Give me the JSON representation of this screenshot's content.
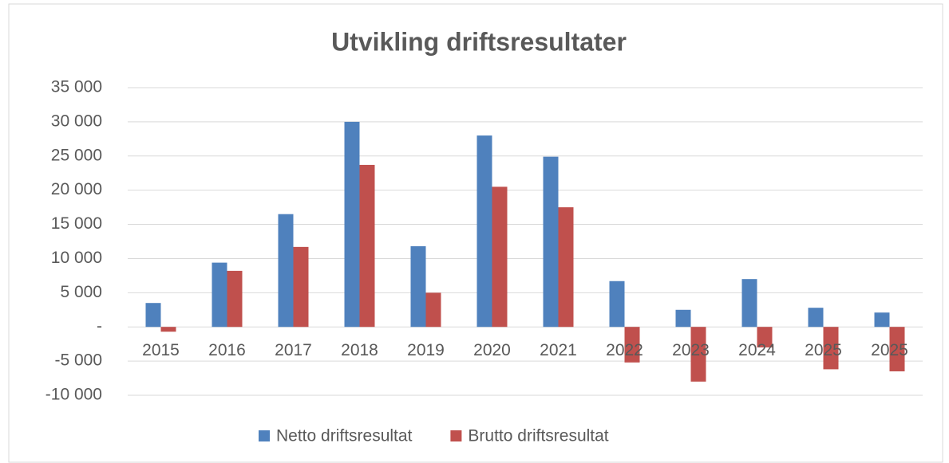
{
  "chart_data": {
    "type": "bar",
    "title": "Utvikling driftsresultater",
    "categories": [
      "2015",
      "2016",
      "2017",
      "2018",
      "2019",
      "2020",
      "2021",
      "2022",
      "2023",
      "2024",
      "2025",
      "2025"
    ],
    "series": [
      {
        "name": "Netto driftsresultat",
        "color": "#4f81bd",
        "values": [
          3500,
          9400,
          16500,
          30000,
          11800,
          28000,
          24900,
          6700,
          2500,
          7000,
          2800,
          2100
        ]
      },
      {
        "name": "Brutto driftsresultat",
        "color": "#c0504d",
        "values": [
          -700,
          8200,
          11700,
          23700,
          5000,
          20500,
          17500,
          -5200,
          -8000,
          -3000,
          -6200,
          -6500
        ]
      }
    ],
    "ylim": [
      -10000,
      35000
    ],
    "yticks": [
      {
        "value": -10000,
        "label": "-10 000"
      },
      {
        "value": -5000,
        "label": "-5 000"
      },
      {
        "value": 0,
        "label": "-"
      },
      {
        "value": 5000,
        "label": "5 000"
      },
      {
        "value": 10000,
        "label": "10 000"
      },
      {
        "value": 15000,
        "label": "15 000"
      },
      {
        "value": 20000,
        "label": "20 000"
      },
      {
        "value": 25000,
        "label": "25 000"
      },
      {
        "value": 30000,
        "label": "30 000"
      },
      {
        "value": 35000,
        "label": "35 000"
      }
    ],
    "grid": true,
    "legend": "bottom"
  }
}
